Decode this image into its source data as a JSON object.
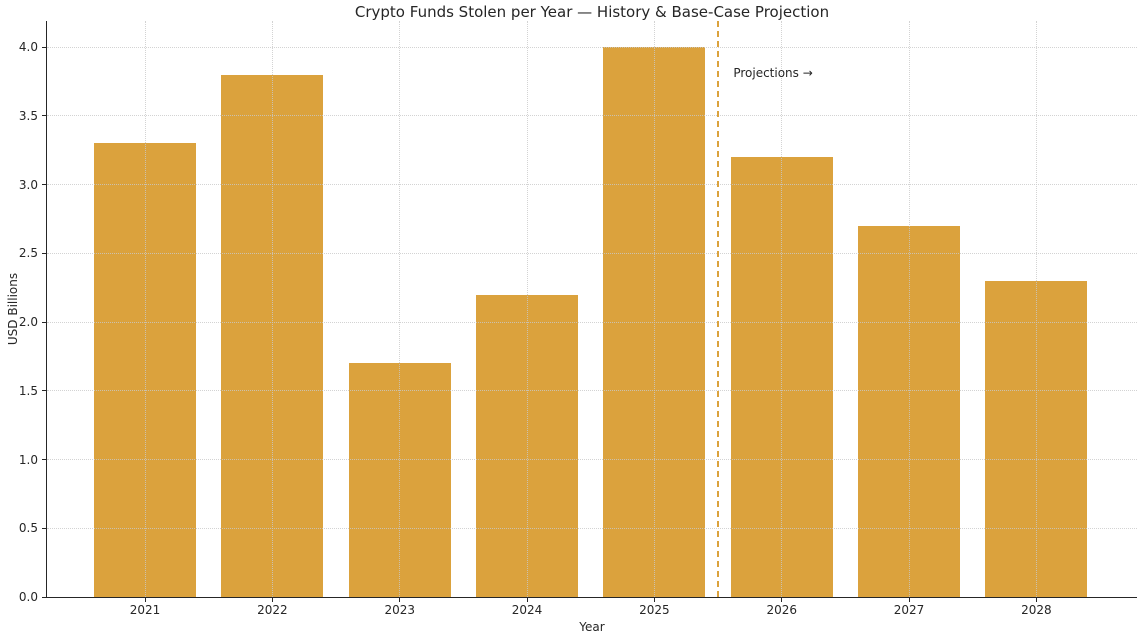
{
  "chart_data": {
    "type": "bar",
    "title": "Crypto Funds Stolen per Year — History & Base-Case Projection",
    "xlabel": "Year",
    "ylabel": "USD Billions",
    "categories": [
      "2021",
      "2022",
      "2023",
      "2024",
      "2025",
      "2026",
      "2027",
      "2028"
    ],
    "values": [
      3.3,
      3.8,
      1.7,
      2.2,
      4.0,
      3.2,
      2.7,
      2.3
    ],
    "segments": {
      "history_years": [
        "2021",
        "2022",
        "2023",
        "2024",
        "2025"
      ],
      "projection_years": [
        "2026",
        "2027",
        "2028"
      ]
    },
    "bar_color": "#DBA23D",
    "bar_width_fraction": 0.8,
    "ylim": [
      0,
      4.19
    ],
    "xlim": [
      -0.77,
      7.79
    ],
    "yticks": [
      0,
      0.5,
      1,
      1.5,
      2,
      2.5,
      3,
      3.5,
      4
    ],
    "ytick_labels": [
      "0.0",
      "0.5",
      "1.0",
      "1.5",
      "2.0",
      "2.5",
      "3.0",
      "3.5",
      "4.0"
    ],
    "grid": true,
    "grid_style": "dotted",
    "grid_color": "#c9c9c9",
    "legend": null,
    "divider": {
      "x": 4.5,
      "style": "dashed",
      "color": "#DBA23D"
    },
    "annotation": {
      "text": "Projections →",
      "x": 4.62,
      "y": 3.81
    },
    "colors": {
      "background": "#ffffff",
      "text": "#262626",
      "spine": "#262626"
    }
  }
}
